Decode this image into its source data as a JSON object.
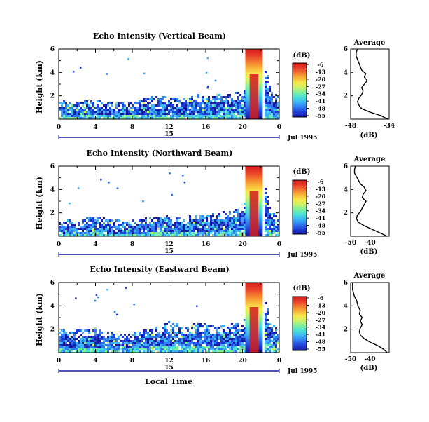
{
  "figure": {
    "date_label": "Jul 1995",
    "x_axis_label": "Local Time",
    "colorbar_unit": "(dB)",
    "colorbar_ticks": [
      "-6",
      "-13",
      "-20",
      "-27",
      "-34",
      "-41",
      "-48",
      "-55"
    ],
    "colormap": [
      "#1a1aa0",
      "#1f3fd6",
      "#2f7bf0",
      "#3cb4f5",
      "#49e0d9",
      "#7df0a0",
      "#c9f26a",
      "#f7e94a",
      "#f9b43a",
      "#f37a2e",
      "#e93e2a",
      "#d41c1c"
    ],
    "average_title": "Average",
    "average_xlabel": "(dB)"
  },
  "chart_data": [
    {
      "type": "heatmap",
      "title": "Echo Intensity (Vertical Beam)",
      "xlabel": "Local Time",
      "ylabel": "Height (km)",
      "xlim": [
        0,
        24
      ],
      "ylim": [
        0,
        6
      ],
      "x_ticks": [
        "0",
        "4",
        "8",
        "12",
        "16",
        "20",
        "0"
      ],
      "y_ticks": [
        "2",
        "4",
        "6"
      ],
      "z_unit": "dB",
      "zlim": [
        -55,
        -6
      ],
      "echo_layer_top_km": [
        1.5,
        1.4,
        1.3,
        1.6,
        1.5,
        1.4,
        1.3,
        1.4,
        1.5,
        1.6,
        1.8,
        1.9,
        1.7,
        1.6,
        1.8,
        2.0,
        1.9,
        2.1,
        1.9,
        2.2,
        2.4,
        6.0,
        6.0,
        2.2,
        1.8
      ],
      "rain_event_hours": [
        20.3,
        22.2
      ]
    },
    {
      "type": "line",
      "title": "Average",
      "xlabel": "(dB)",
      "ylabel": "",
      "xlim": [
        -48,
        -34
      ],
      "ylim": [
        0,
        6
      ],
      "x_ticks": [
        "-48",
        "-34"
      ],
      "y_ticks": [
        "2",
        "4",
        "6"
      ],
      "x": [
        -34.5,
        -37,
        -41,
        -44,
        -45,
        -45.5,
        -45,
        -44,
        -43.5,
        -44,
        -43,
        -42,
        -43,
        -42.5,
        -44,
        -44.5,
        -45,
        -45.5,
        -46,
        -46,
        -45.5
      ],
      "y": [
        0.0,
        0.3,
        0.6,
        0.9,
        1.2,
        1.5,
        1.8,
        2.1,
        2.4,
        2.7,
        3.0,
        3.3,
        3.6,
        3.9,
        4.2,
        4.5,
        4.8,
        5.1,
        5.4,
        5.7,
        6.0
      ]
    },
    {
      "type": "heatmap",
      "title": "Echo Intensity (Northward Beam)",
      "xlabel": "Local Time",
      "ylabel": "Height (km)",
      "xlim": [
        0,
        24
      ],
      "ylim": [
        0,
        6
      ],
      "x_ticks": [
        "0",
        "4",
        "8",
        "12",
        "16",
        "20",
        "0"
      ],
      "y_ticks": [
        "2",
        "4",
        "6"
      ],
      "z_unit": "dB",
      "zlim": [
        -55,
        -6
      ],
      "echo_layer_top_km": [
        1.2,
        1.3,
        1.1,
        1.5,
        1.6,
        1.4,
        1.3,
        1.2,
        1.3,
        1.4,
        1.6,
        1.7,
        1.6,
        1.5,
        1.6,
        1.8,
        1.7,
        1.9,
        2.0,
        2.2,
        2.3,
        6.0,
        6.0,
        2.0,
        1.5
      ],
      "rain_event_hours": [
        20.3,
        22.2
      ]
    },
    {
      "type": "line",
      "title": "Average",
      "xlabel": "(dB)",
      "ylabel": "",
      "xlim": [
        -50,
        -30
      ],
      "ylim": [
        0,
        6
      ],
      "x_ticks": [
        "-50",
        "-40"
      ],
      "y_ticks": [
        "2",
        "4",
        "6"
      ],
      "x": [
        -31,
        -35,
        -39,
        -43,
        -46,
        -47,
        -46.5,
        -45,
        -44,
        -43,
        -42,
        -44,
        -43.5,
        -42,
        -43,
        -45,
        -46,
        -47,
        -48,
        -48,
        -47.5
      ],
      "y": [
        0.0,
        0.3,
        0.6,
        0.9,
        1.2,
        1.5,
        1.8,
        2.1,
        2.4,
        2.7,
        3.0,
        3.3,
        3.6,
        3.9,
        4.2,
        4.5,
        4.8,
        5.1,
        5.4,
        5.7,
        6.0
      ]
    },
    {
      "type": "heatmap",
      "title": "Echo Intensity (Eastward Beam)",
      "xlabel": "Local Time",
      "ylabel": "Height (km)",
      "xlim": [
        0,
        24
      ],
      "ylim": [
        0,
        6
      ],
      "x_ticks": [
        "0",
        "4",
        "8",
        "12",
        "16",
        "20",
        "0"
      ],
      "y_ticks": [
        "2",
        "4",
        "6"
      ],
      "z_unit": "dB",
      "zlim": [
        -55,
        -6
      ],
      "echo_layer_top_km": [
        1.9,
        2.0,
        1.8,
        1.9,
        2.0,
        1.7,
        1.6,
        1.5,
        1.6,
        1.8,
        2.0,
        2.3,
        2.6,
        2.4,
        2.2,
        2.5,
        2.3,
        2.1,
        2.2,
        2.4,
        2.3,
        6.0,
        6.0,
        2.4,
        1.8
      ],
      "rain_event_hours": [
        20.3,
        22.2
      ]
    },
    {
      "type": "line",
      "title": "Average",
      "xlabel": "(dB)",
      "ylabel": "",
      "xlim": [
        -50,
        -30
      ],
      "ylim": [
        0,
        6
      ],
      "x_ticks": [
        "-50",
        "-40"
      ],
      "y_ticks": [
        "2",
        "4",
        "6"
      ],
      "x": [
        -31,
        -33,
        -36,
        -40,
        -43,
        -45,
        -45.5,
        -45,
        -44,
        -45,
        -44,
        -45.5,
        -45,
        -46,
        -46.5,
        -47,
        -48,
        -48.5,
        -49,
        -49,
        -49
      ],
      "y": [
        0.0,
        0.3,
        0.6,
        0.9,
        1.2,
        1.5,
        1.8,
        2.1,
        2.4,
        2.7,
        3.0,
        3.3,
        3.6,
        3.9,
        4.2,
        4.5,
        4.8,
        5.1,
        5.4,
        5.7,
        6.0
      ]
    }
  ],
  "time_bar": {
    "day_label": "15"
  }
}
